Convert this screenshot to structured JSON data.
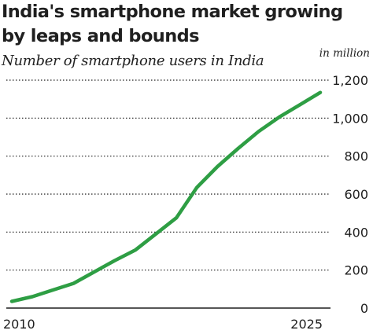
{
  "chart_data": {
    "type": "line",
    "title": "India's smartphone market growing by leaps and bounds",
    "subtitle": "Number of smartphone users in India",
    "unit_label": "in million",
    "x_tick_labels": [
      "2010",
      "2025"
    ],
    "y_tick_labels": [
      "0",
      "200",
      "400",
      "600",
      "800",
      "1,000",
      "1,200"
    ],
    "xlim": [
      2010,
      2025
    ],
    "ylim": [
      0,
      1200
    ],
    "y_ticks": [
      0,
      200,
      400,
      600,
      800,
      1000,
      1200
    ],
    "grid": "horizontal",
    "series": [
      {
        "color": "#2e9e44",
        "x": [
          2010,
          2011,
          2012,
          2013,
          2014,
          2015,
          2016,
          2017,
          2018,
          2019,
          2020,
          2021,
          2022,
          2023,
          2024,
          2025
        ],
        "y": [
          35,
          60,
          95,
          130,
          190,
          250,
          305,
          390,
          475,
          635,
          745,
          840,
          930,
          1005,
          1070,
          1135
        ]
      }
    ]
  }
}
